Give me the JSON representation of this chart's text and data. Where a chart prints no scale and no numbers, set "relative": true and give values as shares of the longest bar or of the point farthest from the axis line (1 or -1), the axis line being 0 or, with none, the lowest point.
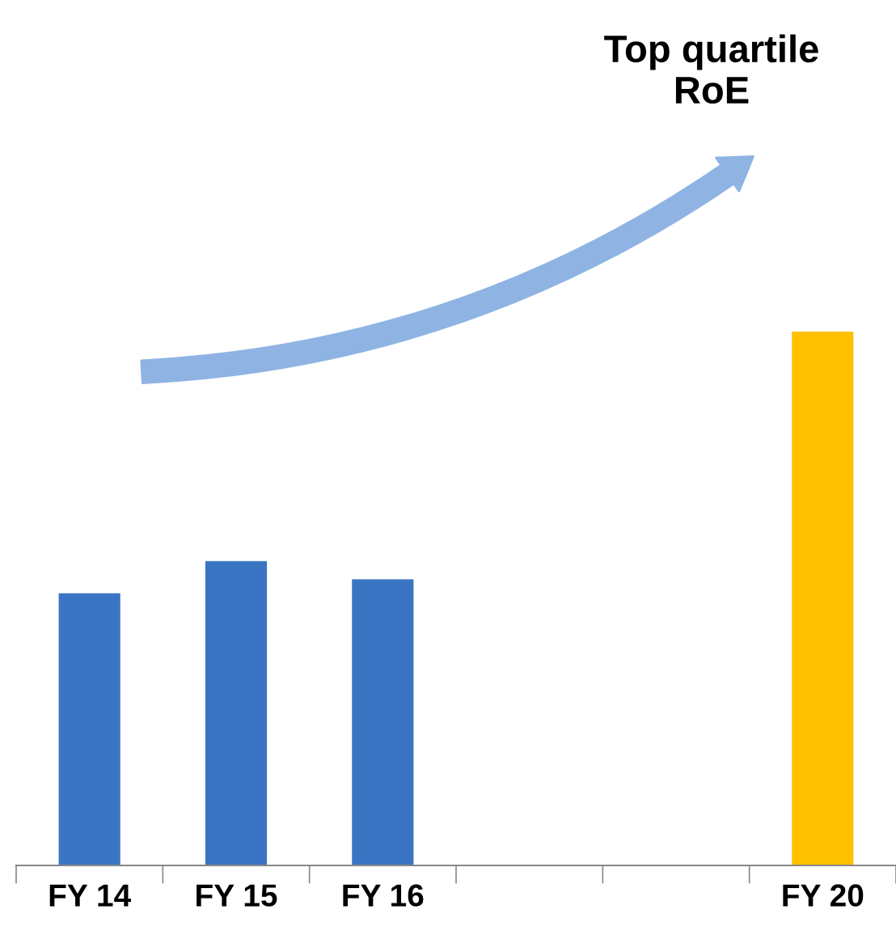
{
  "chart_data": {
    "type": "bar",
    "relative": true,
    "categories": [
      "FY 14",
      "FY 15",
      "FY 16",
      null,
      null,
      "FY 20"
    ],
    "values": [
      0.51,
      0.57,
      0.536,
      null,
      null,
      1
    ],
    "colors": [
      "#3a75c4",
      "#3a75c4",
      "#3a75c4",
      null,
      null,
      "#ffc000"
    ],
    "annotations": [
      "Top quartile RoE"
    ],
    "grid": false,
    "legend": false
  }
}
